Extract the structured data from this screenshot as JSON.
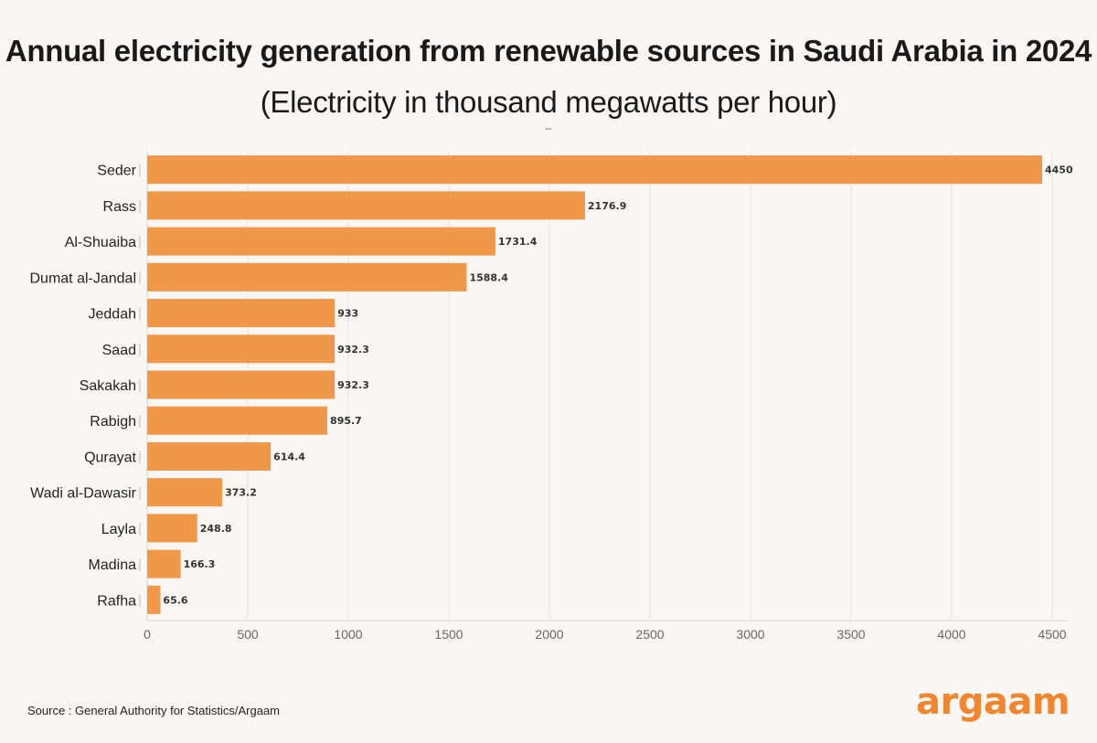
{
  "title": {
    "bold": "Annual electricity generation from renewable sources in Saudi Arabia in 2024",
    "subtitle": "(Electricity in thousand megawatts per hour)"
  },
  "dash_mark": "--",
  "source": "Source : General Authority for Statistics/Argaam",
  "logo_text": "argaam",
  "colors": {
    "bar": "#f0984a",
    "grid": "#e3e1de",
    "accent": "#f0862e"
  },
  "chart_data": {
    "type": "bar",
    "orientation": "horizontal",
    "title": "Annual electricity generation from renewable sources in Saudi Arabia in 2024",
    "xlabel": "",
    "ylabel": "",
    "xlim": [
      0,
      4500
    ],
    "ticks": [
      0,
      500,
      1000,
      1500,
      2000,
      2500,
      3000,
      3500,
      4000,
      4500
    ],
    "categories": [
      "Seder",
      "Rass",
      "Al-Shuaiba",
      "Dumat al-Jandal",
      "Jeddah",
      "Saad",
      "Sakakah",
      "Rabigh",
      "Qurayat",
      "Wadi al-Dawasir",
      "Layla",
      "Madina",
      "Rafha"
    ],
    "values": [
      4450,
      2176.9,
      1731.4,
      1588.4,
      933,
      932.3,
      932.3,
      895.7,
      614.4,
      373.2,
      248.8,
      166.3,
      65.6
    ],
    "value_labels": [
      "4450",
      "2176.9",
      "1731.4",
      "1588.4",
      "933",
      "932.3",
      "932.3",
      "895.7",
      "614.4",
      "373.2",
      "248.8",
      "166.3",
      "65.6"
    ],
    "grid": true
  }
}
